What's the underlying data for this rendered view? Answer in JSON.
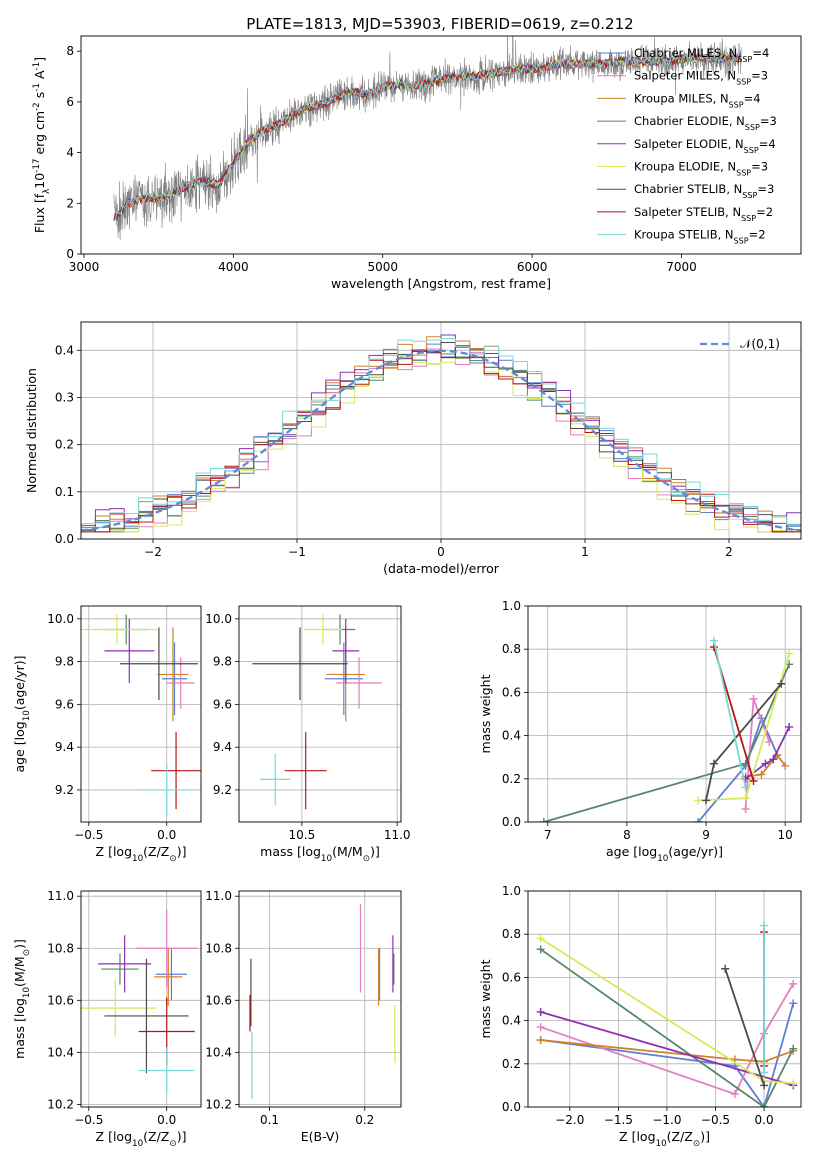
{
  "figure_title": "PLATE=1813, MJD=53903, FIBERID=0619, z=0.212",
  "colors": {
    "Chabrier MILES": "#5b7fd1",
    "Salpeter MILES": "#e37ebf",
    "Kroupa MILES": "#d4822a",
    "Chabrier ELODIE": "#55886a",
    "Salpeter ELODIE": "#8e2fb5",
    "Kroupa ELODIE": "#d6ea59",
    "Chabrier STELIB": "#4a4a4a",
    "Salpeter STELIB": "#b81414",
    "Kroupa STELIB": "#7ad7d7",
    "data_spectrum": "#808080",
    "gaussian": "#5b8bd9"
  },
  "chart_data": [
    {
      "id": "spectrum",
      "type": "line",
      "title": "PLATE=1813, MJD=53903, FIBERID=0619, z=0.212",
      "xlabel": "wavelength [Angstrom, rest frame]",
      "ylabel": "Flux [f$_\\lambda$10$^{-17}$ erg cm$^{-2}$ s$^{-1}$ A$^{-1}$]",
      "xlim": [
        2980,
        7800
      ],
      "ylim": [
        0,
        8.6
      ],
      "xticks": [
        3000,
        4000,
        5000,
        6000,
        7000
      ],
      "yticks": [
        0,
        2,
        4,
        6,
        8
      ],
      "grid": false,
      "legend_position": "top-right",
      "legend": [
        "Chabrier MILES, N$_{SSP}$=4",
        "Salpeter MILES, N$_{SSP}$=3",
        "Kroupa MILES, N$_{SSP}$=4",
        "Chabrier ELODIE, N$_{SSP}$=3",
        "Salpeter ELODIE, N$_{SSP}$=4",
        "Kroupa ELODIE, N$_{SSP}$=3",
        "Chabrier STELIB, N$_{SSP}$=3",
        "Salpeter STELIB, N$_{SSP}$=2",
        "Kroupa STELIB, N$_{SSP}$=2"
      ],
      "continuum_model": {
        "x": [
          3200,
          3300,
          3400,
          3500,
          3600,
          3700,
          3800,
          3900,
          4000,
          4100,
          4200,
          4300,
          4400,
          4500,
          4600,
          4700,
          4800,
          4900,
          5000,
          5100,
          5200,
          5300,
          5400,
          5500,
          5600,
          5700,
          5800,
          5900,
          6000,
          6100,
          6200,
          6300,
          6400,
          6500,
          6600,
          6700,
          6800,
          6900,
          7000,
          7100,
          7200,
          7300,
          7400
        ],
        "y": [
          1.4,
          2.0,
          2.2,
          2.2,
          2.4,
          2.7,
          2.9,
          2.7,
          3.6,
          4.4,
          4.9,
          5.1,
          5.5,
          5.8,
          5.9,
          6.2,
          6.4,
          6.3,
          6.6,
          6.7,
          6.6,
          6.7,
          6.9,
          7.0,
          7.0,
          7.1,
          7.2,
          7.3,
          7.3,
          7.4,
          7.5,
          7.5,
          7.5,
          7.5,
          7.6,
          7.6,
          7.6,
          7.6,
          7.7,
          7.7,
          7.7,
          7.7,
          7.7
        ]
      }
    },
    {
      "id": "residual-histogram",
      "type": "line",
      "xlabel": "(data-model)/error",
      "ylabel": "Normed distribution",
      "xlim": [
        -2.5,
        2.5
      ],
      "ylim": [
        0,
        0.46
      ],
      "xticks": [
        -2,
        -1,
        0,
        1,
        2
      ],
      "yticks": [
        0.0,
        0.1,
        0.2,
        0.3,
        0.4
      ],
      "grid": true,
      "legend_position": "top-right",
      "legend": [
        "$\\mathcal{N}(0,1)$"
      ],
      "bin_width": 0.1,
      "series": [
        {
          "name": "Chabrier MILES",
          "color": "#5b7fd1",
          "offset": 0.004
        },
        {
          "name": "Salpeter MILES",
          "color": "#e37ebf",
          "offset": -0.012
        },
        {
          "name": "Kroupa MILES",
          "color": "#d4822a",
          "offset": 0.008
        },
        {
          "name": "Chabrier ELODIE",
          "color": "#55886a",
          "offset": -0.006
        },
        {
          "name": "Salpeter ELODIE",
          "color": "#8e2fb5",
          "offset": 0.012
        },
        {
          "name": "Kroupa ELODIE",
          "color": "#d6ea59",
          "offset": -0.018
        },
        {
          "name": "Chabrier STELIB",
          "color": "#4a4a4a",
          "offset": 0.002
        },
        {
          "name": "Salpeter STELIB",
          "color": "#b81414",
          "offset": -0.002
        },
        {
          "name": "Kroupa STELIB",
          "color": "#7ad7d7",
          "offset": 0.016
        }
      ]
    },
    {
      "id": "age-vs-Z",
      "type": "scatter",
      "xlabel": "Z [log$_{10}$(Z/Z$_\\odot$)]",
      "ylabel": "age  [log$_{10}$(age/yr)]",
      "xlim": [
        -0.55,
        0.22
      ],
      "ylim": [
        9.05,
        10.06
      ],
      "xticks": [
        -0.5,
        0.0
      ],
      "yticks": [
        9.2,
        9.4,
        9.6,
        9.8,
        10.0
      ],
      "grid": true,
      "points": [
        {
          "name": "Chabrier MILES",
          "x": 0.05,
          "y": 9.72,
          "xerr": 0.08,
          "yerr": 0.17,
          "color": "#5b7fd1"
        },
        {
          "name": "Salpeter MILES",
          "x": 0.09,
          "y": 9.7,
          "xerr": 0.09,
          "yerr": 0.12,
          "color": "#e37ebf"
        },
        {
          "name": "Kroupa MILES",
          "x": 0.04,
          "y": 9.74,
          "xerr": 0.1,
          "yerr": 0.22,
          "color": "#d4822a"
        },
        {
          "name": "Chabrier ELODIE",
          "x": -0.26,
          "y": 9.95,
          "xerr": 0.14,
          "yerr": 0.07,
          "color": "#55886a"
        },
        {
          "name": "Salpeter ELODIE",
          "x": -0.24,
          "y": 9.85,
          "xerr": 0.16,
          "yerr": 0.15,
          "color": "#8e2fb5"
        },
        {
          "name": "Kroupa ELODIE",
          "x": -0.32,
          "y": 9.95,
          "xerr": 0.26,
          "yerr": 0.07,
          "color": "#d6ea59"
        },
        {
          "name": "Chabrier STELIB",
          "x": -0.05,
          "y": 9.79,
          "xerr": 0.25,
          "yerr": 0.17,
          "color": "#4a4a4a"
        },
        {
          "name": "Salpeter STELIB",
          "x": 0.06,
          "y": 9.29,
          "xerr": 0.16,
          "yerr": 0.18,
          "color": "#b81414"
        },
        {
          "name": "Kroupa STELIB",
          "x": 0.0,
          "y": 9.2,
          "xerr": 0.17,
          "yerr": 0.12,
          "color": "#7ad7d7"
        }
      ]
    },
    {
      "id": "age-vs-mass",
      "type": "scatter",
      "xlabel": "mass [log$_{10}$(M/M$_\\odot$)]",
      "ylabel": "",
      "xlim": [
        10.17,
        11.02
      ],
      "ylim": [
        9.05,
        10.06
      ],
      "xticks": [
        10.5,
        11.0
      ],
      "yticks": [
        9.2,
        9.4,
        9.6,
        9.8,
        10.0
      ],
      "grid": true,
      "points": [
        {
          "name": "Chabrier MILES",
          "x": 10.72,
          "y": 9.72,
          "xerr": 0.1,
          "yerr": 0.17,
          "color": "#5b7fd1"
        },
        {
          "name": "Salpeter MILES",
          "x": 10.8,
          "y": 9.7,
          "xerr": 0.12,
          "yerr": 0.12,
          "color": "#e37ebf"
        },
        {
          "name": "Kroupa MILES",
          "x": 10.73,
          "y": 9.74,
          "xerr": 0.1,
          "yerr": 0.22,
          "color": "#d4822a"
        },
        {
          "name": "Chabrier ELODIE",
          "x": 10.7,
          "y": 9.95,
          "xerr": 0.08,
          "yerr": 0.07,
          "color": "#55886a"
        },
        {
          "name": "Salpeter ELODIE",
          "x": 10.73,
          "y": 9.85,
          "xerr": 0.07,
          "yerr": 0.15,
          "color": "#8e2fb5"
        },
        {
          "name": "Kroupa ELODIE",
          "x": 10.61,
          "y": 9.95,
          "xerr": 0.1,
          "yerr": 0.07,
          "color": "#d6ea59"
        },
        {
          "name": "Chabrier STELIB",
          "x": 10.49,
          "y": 9.79,
          "xerr": 0.25,
          "yerr": 0.17,
          "color": "#4a4a4a"
        },
        {
          "name": "Salpeter STELIB",
          "x": 10.52,
          "y": 9.29,
          "xerr": 0.11,
          "yerr": 0.18,
          "color": "#b81414"
        },
        {
          "name": "Kroupa STELIB",
          "x": 10.36,
          "y": 9.25,
          "xerr": 0.08,
          "yerr": 0.12,
          "color": "#7ad7d7"
        }
      ]
    },
    {
      "id": "weight-vs-age",
      "type": "line",
      "xlabel": "age  [log$_{10}$(age/yr)]",
      "ylabel": "mass weight",
      "xlim": [
        6.75,
        10.2
      ],
      "ylim": [
        0,
        1.0
      ],
      "xticks": [
        7,
        8,
        9,
        10
      ],
      "yticks": [
        0.0,
        0.2,
        0.4,
        0.6,
        0.8,
        1.0
      ],
      "grid": true,
      "series": [
        {
          "name": "Chabrier MILES",
          "color": "#5b7fd1",
          "x": [
            8.9,
            9.5,
            9.7,
            9.9
          ],
          "y": [
            0.0,
            0.26,
            0.48,
            0.31
          ]
        },
        {
          "name": "Salpeter MILES",
          "color": "#e37ebf",
          "x": [
            9.5,
            9.6,
            9.8
          ],
          "y": [
            0.06,
            0.57,
            0.37
          ]
        },
        {
          "name": "Kroupa MILES",
          "color": "#d4822a",
          "x": [
            9.5,
            9.7,
            9.9,
            10.0
          ],
          "y": [
            0.21,
            0.22,
            0.31,
            0.26
          ]
        },
        {
          "name": "Chabrier ELODIE",
          "color": "#55886a",
          "x": [
            6.95,
            9.5,
            10.05
          ],
          "y": [
            0.0,
            0.27,
            0.73
          ]
        },
        {
          "name": "Salpeter ELODIE",
          "color": "#8e2fb5",
          "x": [
            9.5,
            9.75,
            9.85,
            10.05
          ],
          "y": [
            0.2,
            0.27,
            0.29,
            0.44
          ]
        },
        {
          "name": "Kroupa ELODIE",
          "color": "#d6ea59",
          "x": [
            8.9,
            9.5,
            10.05
          ],
          "y": [
            0.1,
            0.11,
            0.78
          ]
        },
        {
          "name": "Chabrier STELIB",
          "color": "#4a4a4a",
          "x": [
            9.0,
            9.1,
            9.95
          ],
          "y": [
            0.1,
            0.27,
            0.64
          ]
        },
        {
          "name": "Salpeter STELIB",
          "color": "#b81414",
          "x": [
            9.1,
            9.6
          ],
          "y": [
            0.81,
            0.19
          ]
        },
        {
          "name": "Kroupa STELIB",
          "color": "#7ad7d7",
          "x": [
            9.1,
            9.5
          ],
          "y": [
            0.84,
            0.16
          ]
        }
      ]
    },
    {
      "id": "mass-vs-Z",
      "type": "scatter",
      "xlabel": "Z [log$_{10}$(Z/Z$_\\odot$)]",
      "ylabel": "mass [log$_{10}$(M/M$_\\odot$)]",
      "xlim": [
        -0.55,
        0.22
      ],
      "ylim": [
        10.19,
        11.02
      ],
      "xticks": [
        -0.5,
        0.0
      ],
      "yticks": [
        10.2,
        10.4,
        10.6,
        10.8,
        11.0
      ],
      "grid": true,
      "points": [
        {
          "name": "Chabrier MILES",
          "x": 0.03,
          "y": 10.7,
          "xerr": 0.1,
          "yerr": 0.1,
          "color": "#5b7fd1"
        },
        {
          "name": "Salpeter MILES",
          "x": 0.0,
          "y": 10.8,
          "xerr": 0.2,
          "yerr": 0.15,
          "color": "#e37ebf"
        },
        {
          "name": "Kroupa MILES",
          "x": 0.01,
          "y": 10.69,
          "xerr": 0.09,
          "yerr": 0.11,
          "color": "#d4822a"
        },
        {
          "name": "Chabrier ELODIE",
          "x": -0.3,
          "y": 10.72,
          "xerr": 0.12,
          "yerr": 0.06,
          "color": "#55886a"
        },
        {
          "name": "Salpeter ELODIE",
          "x": -0.27,
          "y": 10.74,
          "xerr": 0.17,
          "yerr": 0.11,
          "color": "#8e2fb5"
        },
        {
          "name": "Kroupa ELODIE",
          "x": -0.33,
          "y": 10.57,
          "xerr": 0.26,
          "yerr": 0.11,
          "color": "#d6ea59"
        },
        {
          "name": "Chabrier STELIB",
          "x": -0.13,
          "y": 10.54,
          "xerr": 0.27,
          "yerr": 0.22,
          "color": "#4a4a4a"
        },
        {
          "name": "Salpeter STELIB",
          "x": 0.0,
          "y": 10.48,
          "xerr": 0.18,
          "yerr": 0.13,
          "color": "#b81414"
        },
        {
          "name": "Kroupa STELIB",
          "x": 0.0,
          "y": 10.33,
          "xerr": 0.18,
          "yerr": 0.09,
          "color": "#7ad7d7"
        }
      ]
    },
    {
      "id": "mass-vs-ebv",
      "type": "scatter",
      "xlabel": "E(B-V)",
      "ylabel": "",
      "xlim": [
        0.068,
        0.238
      ],
      "ylim": [
        10.19,
        11.02
      ],
      "xticks": [
        0.1,
        0.2
      ],
      "yticks": [
        10.2,
        10.4,
        10.6,
        10.8,
        11.0
      ],
      "grid": true,
      "points": [
        {
          "name": "Chabrier MILES",
          "x": 0.2155,
          "y": 10.7,
          "xerr": 0,
          "yerr": 0.1,
          "color": "#5b7fd1"
        },
        {
          "name": "Salpeter MILES",
          "x": 0.1955,
          "y": 10.8,
          "xerr": 0,
          "yerr": 0.17,
          "color": "#e37ebf"
        },
        {
          "name": "Kroupa MILES",
          "x": 0.2145,
          "y": 10.69,
          "xerr": 0,
          "yerr": 0.11,
          "color": "#d4822a"
        },
        {
          "name": "Chabrier ELODIE",
          "x": 0.2305,
          "y": 10.72,
          "xerr": 0,
          "yerr": 0.06,
          "color": "#55886a"
        },
        {
          "name": "Salpeter ELODIE",
          "x": 0.2295,
          "y": 10.74,
          "xerr": 0,
          "yerr": 0.11,
          "color": "#8e2fb5"
        },
        {
          "name": "Kroupa ELODIE",
          "x": 0.2315,
          "y": 10.47,
          "xerr": 0,
          "yerr": 0.11,
          "color": "#d6ea59"
        },
        {
          "name": "Chabrier STELIB",
          "x": 0.0805,
          "y": 10.63,
          "xerr": 0,
          "yerr": 0.13,
          "color": "#4a4a4a"
        },
        {
          "name": "Salpeter STELIB",
          "x": 0.0795,
          "y": 10.55,
          "xerr": 0,
          "yerr": 0.07,
          "color": "#b81414"
        },
        {
          "name": "Kroupa STELIB",
          "x": 0.0815,
          "y": 10.35,
          "xerr": 0,
          "yerr": 0.13,
          "color": "#7ad7d7"
        }
      ]
    },
    {
      "id": "weight-vs-Z",
      "type": "line",
      "xlabel": "Z [log$_{10}$(Z/Z$_\\odot$)]",
      "ylabel": "mass weight",
      "xlim": [
        -2.43,
        0.38
      ],
      "ylim": [
        0,
        1.0
      ],
      "xticks": [
        -2.0,
        -1.5,
        -1.0,
        -0.5,
        0.0
      ],
      "yticks": [
        0.0,
        0.2,
        0.4,
        0.6,
        0.8,
        1.0
      ],
      "grid": true,
      "series": [
        {
          "name": "Chabrier MILES",
          "color": "#5b7fd1",
          "x": [
            -2.3,
            -0.3,
            0.0,
            0.3
          ],
          "y": [
            0.31,
            0.19,
            0.0,
            0.48
          ]
        },
        {
          "name": "Salpeter MILES",
          "color": "#e37ebf",
          "x": [
            -2.3,
            -0.3,
            0.0,
            0.3
          ],
          "y": [
            0.37,
            0.06,
            0.34,
            0.57
          ]
        },
        {
          "name": "Kroupa MILES",
          "color": "#d4822a",
          "x": [
            -2.3,
            -0.3,
            0.0,
            0.3
          ],
          "y": [
            0.31,
            0.22,
            0.21,
            0.26
          ]
        },
        {
          "name": "Chabrier ELODIE",
          "color": "#55886a",
          "x": [
            -2.3,
            0.0,
            0.3
          ],
          "y": [
            0.73,
            0.0,
            0.27
          ]
        },
        {
          "name": "Salpeter ELODIE",
          "color": "#8e2fb5",
          "x": [
            -2.3,
            0.3
          ],
          "y": [
            0.44,
            0.1
          ]
        },
        {
          "name": "Kroupa ELODIE",
          "color": "#d6ea59",
          "x": [
            -2.3,
            0.0,
            0.3
          ],
          "y": [
            0.78,
            0.12,
            0.11
          ]
        },
        {
          "name": "Chabrier STELIB",
          "color": "#4a4a4a",
          "x": [
            -0.4,
            0.0
          ],
          "y": [
            0.64,
            0.1
          ]
        },
        {
          "name": "Salpeter STELIB",
          "color": "#b81414",
          "x": [
            0.0,
            0.0
          ],
          "y": [
            0.81,
            0.19
          ]
        },
        {
          "name": "Kroupa STELIB",
          "color": "#7ad7d7",
          "x": [
            0.0,
            0.0
          ],
          "y": [
            0.84,
            0.16
          ]
        }
      ]
    }
  ]
}
